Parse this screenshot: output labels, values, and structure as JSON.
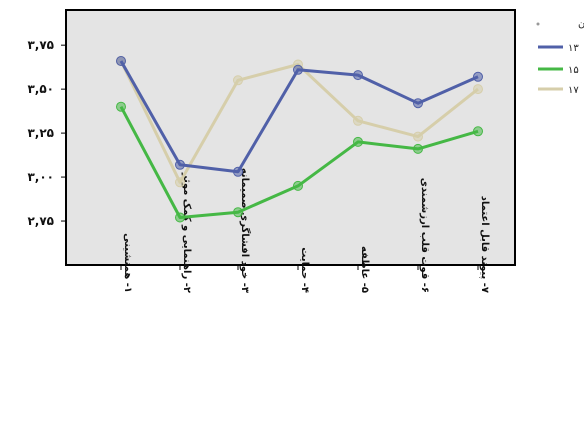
{
  "chart_data": {
    "type": "line",
    "categories": [
      "۱- همنشینی",
      "۲- راهنمایی و کمک موثر",
      "۳- خود افشاگری صمیمانه",
      "۴- حمایت",
      "۵- عاطفه",
      "۶- قوت قلب ارزشمندی",
      "۷- پیوند قابل اعتماد"
    ],
    "ylim": [
      2.5,
      3.95
    ],
    "yticks": [
      {
        "value": 2.75,
        "label": "۲,۷۵"
      },
      {
        "value": 3.0,
        "label": "۳,۰۰"
      },
      {
        "value": 3.25,
        "label": "۳,۲۵"
      },
      {
        "value": 3.5,
        "label": "۳,۵۰"
      },
      {
        "value": 3.75,
        "label": "۳,۷۵"
      }
    ],
    "legend_title": "سن",
    "legend_position": "right",
    "series": [
      {
        "name": "۱۳",
        "color": "#5060a8",
        "values": [
          3.66,
          3.07,
          3.03,
          3.61,
          3.58,
          3.42,
          3.57
        ]
      },
      {
        "name": "۱۵",
        "color": "#45b845",
        "values": [
          3.4,
          2.77,
          2.8,
          2.95,
          3.2,
          3.16,
          3.26
        ]
      },
      {
        "name": "۱۷",
        "color": "#d6ceaa",
        "values": [
          3.66,
          2.97,
          3.55,
          3.64,
          3.32,
          3.23,
          3.5
        ]
      }
    ],
    "grid": false,
    "background": "#e4e4e4"
  }
}
